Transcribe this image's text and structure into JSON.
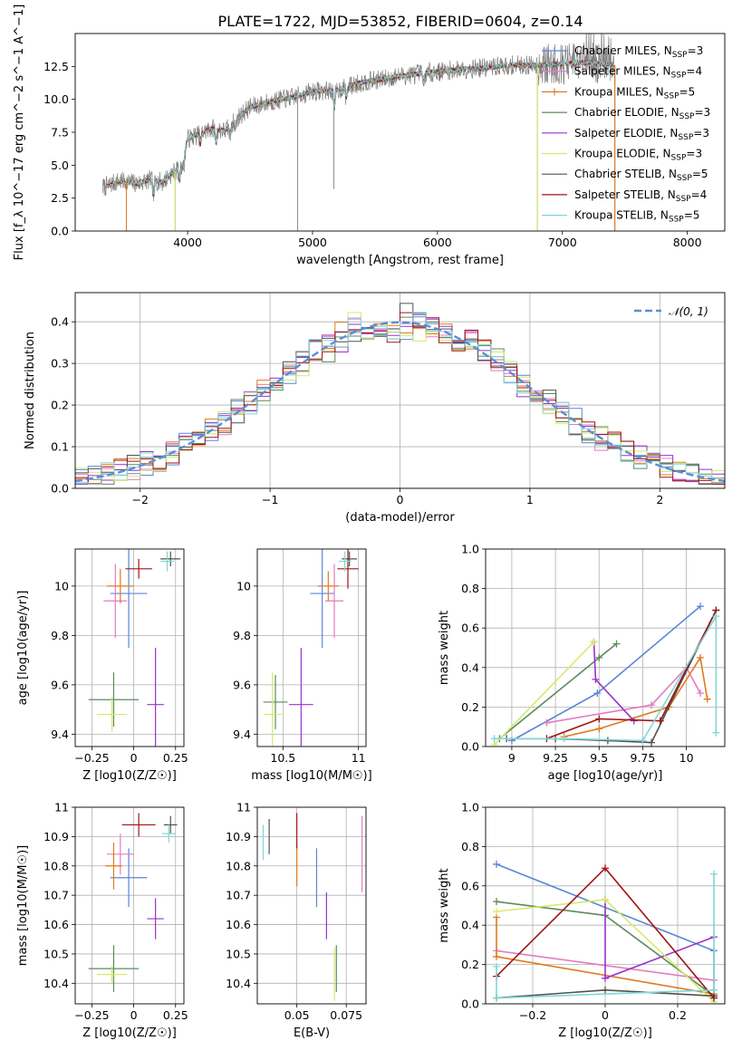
{
  "figure": {
    "title": "PLATE=1722, MJD=53852, FIBERID=0604, z=0.14"
  },
  "colors": {
    "Chabrier MILES": "#5a86d6",
    "Salpeter MILES": "#e57bc1",
    "Kroupa MILES": "#e07a1f",
    "Chabrier ELODIE": "#5c8a5c",
    "Salpeter ELODIE": "#9932cc",
    "Kroupa ELODIE": "#d4ea6b",
    "Chabrier STELIB": "#505050",
    "Salpeter STELIB": "#a01414",
    "Kroupa STELIB": "#7fd6d6",
    "normal": "#5b8ed6",
    "grid": "#b0b0b0"
  },
  "chart_data": [
    {
      "id": "spectrum",
      "type": "line",
      "xlabel": "wavelength [Angstrom, rest frame]",
      "ylabel": "Flux [f_λ 10^−17 erg cm^−2 s^−1 A^−1]",
      "xlim": [
        3100,
        8300
      ],
      "ylim": [
        0,
        15
      ],
      "xticks": [
        4000,
        5000,
        6000,
        7000,
        8000
      ],
      "yticks": [
        0.0,
        2.5,
        5.0,
        7.5,
        10.0,
        12.5
      ],
      "grid": false,
      "legend_position": "top-right",
      "legend": [
        {
          "model": "Chabrier MILES",
          "label": "Chabrier MILES, N",
          "n": "3"
        },
        {
          "model": "Salpeter MILES",
          "label": "Salpeter MILES, N",
          "n": "4"
        },
        {
          "model": "Kroupa MILES",
          "label": "Kroupa MILES, N",
          "n": "5"
        },
        {
          "model": "Chabrier ELODIE",
          "label": "Chabrier ELODIE, N",
          "n": "3"
        },
        {
          "model": "Salpeter ELODIE",
          "label": "Salpeter ELODIE, N",
          "n": "3"
        },
        {
          "model": "Kroupa ELODIE",
          "label": "Kroupa ELODIE, N",
          "n": "3"
        },
        {
          "model": "Chabrier STELIB",
          "label": "Chabrier STELIB, N",
          "n": "5"
        },
        {
          "model": "Salpeter STELIB",
          "label": "Salpeter STELIB, N",
          "n": "4"
        },
        {
          "model": "Kroupa STELIB",
          "label": "Kroupa STELIB, N",
          "n": "5"
        }
      ],
      "legend_subscript": "SSP",
      "continuum": [
        [
          3320,
          3.3
        ],
        [
          3450,
          3.8
        ],
        [
          3600,
          3.6
        ],
        [
          3700,
          3.9
        ],
        [
          3800,
          3.7
        ],
        [
          3850,
          4.2
        ],
        [
          3950,
          4.9
        ],
        [
          4000,
          7.0
        ],
        [
          4100,
          7.4
        ],
        [
          4200,
          7.8
        ],
        [
          4300,
          7.6
        ],
        [
          4400,
          8.6
        ],
        [
          4500,
          9.4
        ],
        [
          4700,
          9.9
        ],
        [
          4861,
          10.2
        ],
        [
          5000,
          10.6
        ],
        [
          5200,
          10.7
        ],
        [
          5400,
          11.3
        ],
        [
          5600,
          11.6
        ],
        [
          5800,
          11.9
        ],
        [
          6000,
          12.1
        ],
        [
          6200,
          12.3
        ],
        [
          6400,
          12.4
        ],
        [
          6563,
          12.6
        ],
        [
          6800,
          12.6
        ],
        [
          7000,
          12.7
        ],
        [
          7200,
          12.8
        ],
        [
          7400,
          12.6
        ]
      ],
      "drops": [
        [
          3510,
          0.0
        ],
        [
          3900,
          0.0
        ],
        [
          4880,
          0.0
        ],
        [
          5170,
          3.2
        ],
        [
          6800,
          0.0
        ],
        [
          7420,
          0.0
        ]
      ]
    },
    {
      "id": "residuals",
      "type": "histogram",
      "xlabel": "(data-model)/error",
      "ylabel": "Normed distribution",
      "xlim": [
        -2.5,
        2.5
      ],
      "ylim": [
        0,
        0.47
      ],
      "xticks": [
        -2,
        -1,
        0,
        1,
        2
      ],
      "yticks": [
        0.0,
        0.1,
        0.2,
        0.3,
        0.4
      ],
      "grid": true,
      "legend_position": "top-right",
      "normal_label": "𝒩(0, 1)",
      "bin_width": 0.1
    },
    {
      "id": "age-vs-Z",
      "type": "errorbar",
      "xlabel": "Z [log10(Z/Z☉)]",
      "ylabel": "age  [log10(age/yr)]",
      "xlim": [
        -0.35,
        0.3
      ],
      "ylim": [
        9.35,
        10.15
      ],
      "xticks": [
        -0.25,
        0.0,
        0.25
      ],
      "yticks": [
        9.4,
        9.6,
        9.8,
        10.0
      ],
      "grid": true,
      "points": [
        {
          "model": "Chabrier MILES",
          "x": -0.03,
          "xerr": 0.11,
          "y": 9.97,
          "yerr": 0.22
        },
        {
          "model": "Salpeter MILES",
          "x": -0.11,
          "xerr": 0.07,
          "y": 9.94,
          "yerr": 0.15
        },
        {
          "model": "Kroupa MILES",
          "x": -0.08,
          "xerr": 0.08,
          "y": 10.0,
          "yerr": 0.07
        },
        {
          "model": "Chabrier ELODIE",
          "x": -0.12,
          "xerr": 0.15,
          "y": 9.54,
          "yerr": 0.11
        },
        {
          "model": "Salpeter ELODIE",
          "x": 0.13,
          "xerr": 0.05,
          "y": 9.52,
          "yerr": 0.23
        },
        {
          "model": "Kroupa ELODIE",
          "x": -0.13,
          "xerr": 0.09,
          "y": 9.48,
          "yerr": 0.07
        },
        {
          "model": "Chabrier STELIB",
          "x": 0.22,
          "xerr": 0.06,
          "y": 10.11,
          "yerr": 0.03
        },
        {
          "model": "Salpeter STELIB",
          "x": 0.03,
          "xerr": 0.08,
          "y": 10.07,
          "yerr": 0.04
        },
        {
          "model": "Kroupa STELIB",
          "x": 0.2,
          "xerr": 0.04,
          "y": 10.1,
          "yerr": 0.04
        }
      ]
    },
    {
      "id": "age-vs-mass",
      "type": "errorbar",
      "xlabel": "mass [log10(M/M☉)]",
      "ylabel": "",
      "xlim": [
        10.33,
        11.05
      ],
      "ylim": [
        9.35,
        10.15
      ],
      "xticks": [
        10.5,
        11.0
      ],
      "yticks": [
        9.4,
        9.6,
        9.8,
        10.0
      ],
      "grid": true,
      "points": [
        {
          "model": "Chabrier MILES",
          "x": 10.76,
          "xerr": 0.08,
          "y": 9.97,
          "yerr": 0.22
        },
        {
          "model": "Salpeter MILES",
          "x": 10.84,
          "xerr": 0.06,
          "y": 9.94,
          "yerr": 0.15
        },
        {
          "model": "Kroupa MILES",
          "x": 10.8,
          "xerr": 0.07,
          "y": 10.0,
          "yerr": 0.06
        },
        {
          "model": "Chabrier ELODIE",
          "x": 10.45,
          "xerr": 0.08,
          "y": 9.53,
          "yerr": 0.11
        },
        {
          "model": "Salpeter ELODIE",
          "x": 10.62,
          "xerr": 0.08,
          "y": 9.52,
          "yerr": 0.23
        },
        {
          "model": "Kroupa ELODIE",
          "x": 10.43,
          "xerr": 0.06,
          "y": 9.48,
          "yerr": 0.17
        },
        {
          "model": "Chabrier STELIB",
          "x": 10.94,
          "xerr": 0.05,
          "y": 10.11,
          "yerr": 0.03
        },
        {
          "model": "Salpeter STELIB",
          "x": 10.93,
          "xerr": 0.07,
          "y": 10.07,
          "yerr": 0.08
        },
        {
          "model": "Kroupa STELIB",
          "x": 10.91,
          "xerr": 0.04,
          "y": 10.1,
          "yerr": 0.04
        }
      ]
    },
    {
      "id": "weight-vs-age",
      "type": "line",
      "xlabel": "age  [log10(age/yr)]",
      "ylabel": "mass weight",
      "xlim": [
        8.85,
        10.22
      ],
      "ylim": [
        0,
        1.0
      ],
      "xticks": [
        9.0,
        9.25,
        9.5,
        9.75,
        10.0
      ],
      "yticks": [
        0.0,
        0.2,
        0.4,
        0.6,
        0.8,
        1.0
      ],
      "grid": true,
      "series": [
        {
          "model": "Chabrier MILES",
          "x": [
            9.0,
            9.49,
            10.08
          ],
          "y": [
            0.03,
            0.27,
            0.71
          ]
        },
        {
          "model": "Salpeter MILES",
          "x": [
            9.2,
            9.8,
            10.0,
            10.08
          ],
          "y": [
            0.12,
            0.21,
            0.4,
            0.27
          ]
        },
        {
          "model": "Kroupa MILES",
          "x": [
            9.3,
            9.5,
            9.9,
            10.08,
            10.12
          ],
          "y": [
            0.05,
            0.09,
            0.2,
            0.45,
            0.24
          ]
        },
        {
          "model": "Chabrier ELODIE",
          "x": [
            8.93,
            9.5,
            9.6
          ],
          "y": [
            0.04,
            0.45,
            0.52
          ]
        },
        {
          "model": "Salpeter ELODIE",
          "x": [
            9.47,
            9.48,
            9.7
          ],
          "y": [
            0.53,
            0.34,
            0.13
          ]
        },
        {
          "model": "Kroupa ELODIE",
          "x": [
            8.9,
            9.47
          ],
          "y": [
            0.01,
            0.53
          ]
        },
        {
          "model": "Chabrier STELIB",
          "x": [
            8.97,
            9.25,
            9.55,
            9.8,
            10.17
          ],
          "y": [
            0.04,
            0.04,
            0.03,
            0.02,
            0.69
          ]
        },
        {
          "model": "Salpeter STELIB",
          "x": [
            9.2,
            9.5,
            9.85,
            10.17
          ],
          "y": [
            0.04,
            0.14,
            0.13,
            0.69
          ]
        },
        {
          "model": "Kroupa STELIB",
          "x": [
            8.9,
            9.3,
            9.75,
            10.17,
            10.17
          ],
          "y": [
            0.04,
            0.04,
            0.03,
            0.66,
            0.07
          ]
        }
      ]
    },
    {
      "id": "mass-vs-Z",
      "type": "errorbar",
      "xlabel": "Z [log10(Z/Z☉)]",
      "ylabel": "mass [log10(M/M☉)]",
      "xlim": [
        -0.35,
        0.3
      ],
      "ylim": [
        10.33,
        11.0
      ],
      "xticks": [
        -0.25,
        0.0,
        0.25
      ],
      "yticks": [
        10.4,
        10.5,
        10.6,
        10.7,
        10.8,
        10.9,
        11.0
      ],
      "grid": true,
      "points": [
        {
          "model": "Chabrier MILES",
          "x": -0.03,
          "xerr": 0.11,
          "y": 10.76,
          "yerr": 0.1
        },
        {
          "model": "Salpeter MILES",
          "x": -0.08,
          "xerr": 0.08,
          "y": 10.84,
          "yerr": 0.07
        },
        {
          "model": "Kroupa MILES",
          "x": -0.12,
          "xerr": 0.05,
          "y": 10.8,
          "yerr": 0.08
        },
        {
          "model": "Chabrier ELODIE",
          "x": -0.12,
          "xerr": 0.15,
          "y": 10.45,
          "yerr": 0.08
        },
        {
          "model": "Salpeter ELODIE",
          "x": 0.13,
          "xerr": 0.05,
          "y": 10.62,
          "yerr": 0.07
        },
        {
          "model": "Kroupa ELODIE",
          "x": -0.13,
          "xerr": 0.09,
          "y": 10.43,
          "yerr": 0.03
        },
        {
          "model": "Chabrier STELIB",
          "x": 0.22,
          "xerr": 0.04,
          "y": 10.94,
          "yerr": 0.03
        },
        {
          "model": "Salpeter STELIB",
          "x": 0.03,
          "xerr": 0.1,
          "y": 10.94,
          "yerr": 0.04
        },
        {
          "model": "Kroupa STELIB",
          "x": 0.21,
          "xerr": 0.04,
          "y": 10.91,
          "yerr": 0.03
        }
      ]
    },
    {
      "id": "mass-vs-EBV",
      "type": "errorbar",
      "xlabel": "E(B-V)",
      "ylabel": "",
      "xlim": [
        0.03,
        0.085
      ],
      "ylim": [
        10.33,
        11.0
      ],
      "xticks": [
        0.05,
        0.075
      ],
      "yticks": [
        10.4,
        10.5,
        10.6,
        10.7,
        10.8,
        10.9,
        11.0
      ],
      "grid": true,
      "points": [
        {
          "model": "Chabrier MILES",
          "x": 0.06,
          "xerr": 0.0,
          "y": 10.76,
          "yerr": 0.1
        },
        {
          "model": "Salpeter MILES",
          "x": 0.083,
          "xerr": 0.0,
          "y": 10.84,
          "yerr": 0.13
        },
        {
          "model": "Kroupa MILES",
          "x": 0.05,
          "xerr": 0.0,
          "y": 10.8,
          "yerr": 0.07
        },
        {
          "model": "Chabrier ELODIE",
          "x": 0.07,
          "xerr": 0.0,
          "y": 10.45,
          "yerr": 0.08
        },
        {
          "model": "Salpeter ELODIE",
          "x": 0.065,
          "xerr": 0.0,
          "y": 10.63,
          "yerr": 0.08
        },
        {
          "model": "Kroupa ELODIE",
          "x": 0.069,
          "xerr": 0.0,
          "y": 10.43,
          "yerr": 0.09
        },
        {
          "model": "Chabrier STELIB",
          "x": 0.036,
          "xerr": 0.0,
          "y": 10.9,
          "yerr": 0.06
        },
        {
          "model": "Salpeter STELIB",
          "x": 0.05,
          "xerr": 0.0,
          "y": 10.92,
          "yerr": 0.06
        },
        {
          "model": "Kroupa STELIB",
          "x": 0.033,
          "xerr": 0.0,
          "y": 10.88,
          "yerr": 0.06
        }
      ]
    },
    {
      "id": "weight-vs-Z",
      "type": "line",
      "xlabel": "Z [log10(Z/Z☉)]",
      "ylabel": "mass weight",
      "xlim": [
        -0.33,
        0.33
      ],
      "ylim": [
        0,
        1.0
      ],
      "xticks": [
        -0.2,
        0.0,
        0.2
      ],
      "yticks": [
        0.0,
        0.2,
        0.4,
        0.6,
        0.8,
        1.0
      ],
      "grid": true,
      "series": [
        {
          "model": "Chabrier MILES",
          "x": [
            -0.3,
            0.3,
            0.3
          ],
          "y": [
            0.71,
            0.27,
            0.03
          ]
        },
        {
          "model": "Salpeter MILES",
          "x": [
            -0.3,
            0.3
          ],
          "y": [
            0.27,
            0.12
          ]
        },
        {
          "model": "Kroupa MILES",
          "x": [
            -0.3,
            -0.3,
            0.3
          ],
          "y": [
            0.44,
            0.24,
            0.05
          ]
        },
        {
          "model": "Chabrier ELODIE",
          "x": [
            -0.3,
            0.0,
            0.3
          ],
          "y": [
            0.52,
            0.45,
            0.04
          ]
        },
        {
          "model": "Salpeter ELODIE",
          "x": [
            0.0,
            0.0,
            0.3
          ],
          "y": [
            0.53,
            0.13,
            0.34
          ]
        },
        {
          "model": "Kroupa ELODIE",
          "x": [
            -0.3,
            0.0,
            0.3
          ],
          "y": [
            0.47,
            0.53,
            0.01
          ]
        },
        {
          "model": "Chabrier STELIB",
          "x": [
            -0.3,
            0.0,
            0.3
          ],
          "y": [
            0.03,
            0.07,
            0.04
          ]
        },
        {
          "model": "Salpeter STELIB",
          "x": [
            -0.3,
            0.0,
            0.3
          ],
          "y": [
            0.14,
            0.69,
            0.03
          ]
        },
        {
          "model": "Kroupa STELIB",
          "x": [
            -0.3,
            -0.3,
            0.3,
            0.3
          ],
          "y": [
            0.19,
            0.03,
            0.07,
            0.66
          ]
        }
      ]
    }
  ]
}
